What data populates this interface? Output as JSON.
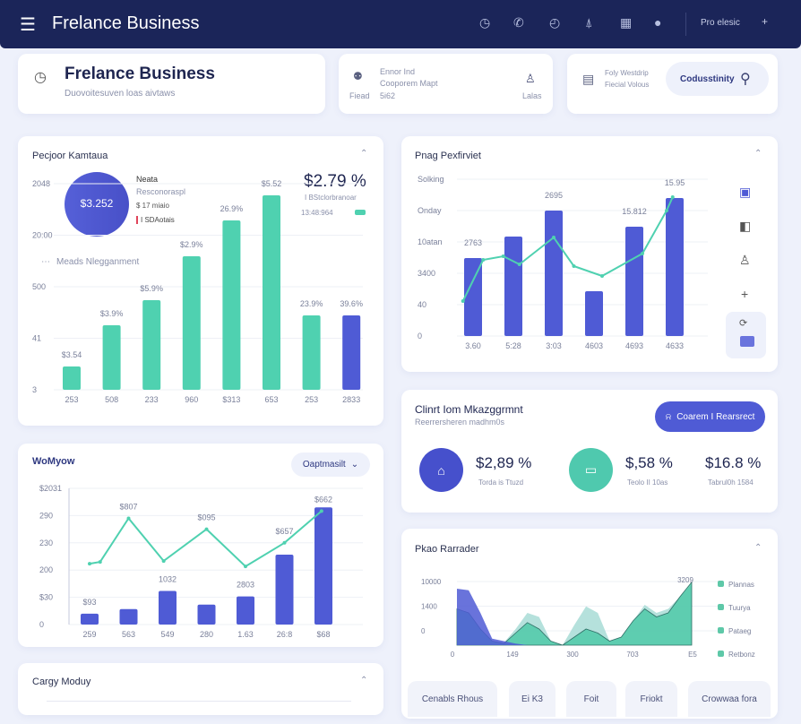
{
  "header": {
    "title": "Frelance Business",
    "user_label": "Pro elesic",
    "icons": [
      "clock-icon",
      "phone-icon",
      "timer-icon",
      "user-upload-icon",
      "calendar-icon",
      "info-icon"
    ]
  },
  "top_cards": {
    "business": {
      "title": "Frelance Business",
      "subtitle": "Duovoitesuven loas aivtaws"
    },
    "contact": {
      "line1": "Ennor Ind",
      "line2": "Cooporem Mapt",
      "label_left": "Fiead",
      "value": "5i62",
      "label_right": "Lalas"
    },
    "search": {
      "line1": "Foly Westdrip",
      "line2": "Fiecial Volous",
      "button": "Codusstinity"
    }
  },
  "colors": {
    "navy": "#1b2559",
    "blue": "#4f5bd5",
    "teal": "#4fd1b0",
    "red": "#e0455a"
  },
  "panel_a": {
    "title": "Pecjoor Kamtaua",
    "donut_value": "$3.252",
    "legend_title": "Neata",
    "legend_items": [
      "Resconoraspl",
      "$ 17 miaio",
      "I SDAotais"
    ],
    "kpi": "$2.79 %",
    "kpi_sub": "I BStclorbranoar",
    "kpi_time": "13:48:964",
    "filter": "Meads Nlegganment"
  },
  "panel_b": {
    "title": "Pnag Pexfirviet"
  },
  "panel_c": {
    "title": "Clinrt Iom Mkazggrmnt",
    "subtitle": "Reerrersheren madhm0s",
    "button": "Coarem I Rearsrect",
    "stats": [
      {
        "value": "$2,89 %",
        "label": "Torda is Ttuzd"
      },
      {
        "value": "$,58 %",
        "label": "Teolo II 10as"
      },
      {
        "value": "$16.8 %",
        "label": "Tabrul0h 1584"
      }
    ]
  },
  "panel_d": {
    "title": "WoMyow",
    "dropdown": "Oaptmasilt"
  },
  "panel_e": {
    "title": "Cargy Moduy"
  },
  "panel_f": {
    "title": "Pkao Rarrader",
    "tabs": [
      "Cenabls Rhous",
      "Ei K3",
      "Foit",
      "Friokt",
      "Crowwaa fora"
    ]
  },
  "chart_data": [
    {
      "type": "bar",
      "title": "Pecjoor Kamtaua",
      "categories": [
        "253",
        "508",
        "233",
        "960",
        "$313",
        "653",
        "253",
        "2833"
      ],
      "values": [
        26,
        72,
        100,
        149,
        189,
        217,
        83,
        83
      ],
      "data_labels": [
        "$3.54",
        "$3.9%",
        "$5.9%",
        "$2.9%",
        "26.9%",
        "$5.52",
        "23.9%",
        "39.6%"
      ],
      "yticks": [
        "3",
        "41",
        "500",
        "20:00",
        "2048"
      ],
      "ylim": [
        0,
        230
      ],
      "highlight_index": 7
    },
    {
      "type": "bar+line",
      "title": "Pnag Pexfirviet",
      "categories": [
        "3.60",
        "5:28",
        "3:03",
        "4603",
        "4693",
        "4633"
      ],
      "values": [
        87,
        111,
        140,
        50,
        122,
        154
      ],
      "data_labels": [
        "2763",
        "",
        "2695",
        "",
        "15.812",
        "15.95"
      ],
      "line": {
        "x": [
          -0.25,
          0.25,
          0.75,
          1.15,
          2,
          2.5,
          3.2,
          4.2,
          4.8,
          4.95
        ],
        "y": [
          39,
          85,
          89,
          80,
          110,
          78,
          67,
          92,
          140,
          155
        ]
      },
      "yticks": [
        "0",
        "40",
        "3400",
        "10atan",
        "Onday",
        "Solking"
      ],
      "ylim": [
        0,
        175
      ]
    },
    {
      "type": "bar+line",
      "title": "WoMyow",
      "categories": [
        "259",
        "563",
        "549",
        "280",
        "1.63",
        "26:8",
        "$68"
      ],
      "values": [
        12,
        17,
        37,
        22,
        31,
        77,
        129
      ],
      "data_labels": [
        "$93",
        "",
        "1032",
        "",
        "2803",
        "",
        ""
      ],
      "line": {
        "x": [
          0,
          0.27,
          1,
          1.9,
          3,
          4,
          5,
          5.95
        ],
        "y": [
          67,
          69,
          117,
          70,
          105,
          64,
          90,
          125
        ]
      },
      "line_labels": [
        {
          "x": 1,
          "text": "$807"
        },
        {
          "x": 3,
          "text": "$095"
        },
        {
          "x": 5,
          "text": "$657"
        },
        {
          "x": 6,
          "text": "$662"
        }
      ],
      "yticks": [
        "0",
        "$30",
        "200",
        "230",
        "290",
        "$2031"
      ],
      "ylim": [
        0,
        150
      ]
    },
    {
      "type": "area",
      "title": "Pkao Rarrader",
      "xticks": [
        "0",
        "149",
        "300",
        "703",
        "E5"
      ],
      "yticks": [
        "0",
        "1400",
        "10000"
      ],
      "series": [
        {
          "name": "Plannas",
          "color": "#4f5bd5",
          "y": [
            70,
            68,
            40,
            8,
            5,
            2,
            0,
            0,
            0,
            0,
            0,
            0,
            0,
            0,
            0,
            0,
            0,
            0,
            0,
            0,
            0
          ]
        },
        {
          "name": "Tuurya",
          "color": "#a8dcd6",
          "y": [
            45,
            40,
            20,
            5,
            3,
            20,
            40,
            35,
            5,
            0,
            25,
            48,
            40,
            5,
            10,
            30,
            50,
            40,
            45,
            60,
            75
          ]
        },
        {
          "name": "Pataeg",
          "color": "#4fc9a8",
          "y": [
            45,
            40,
            20,
            5,
            2,
            15,
            28,
            20,
            5,
            0,
            10,
            20,
            15,
            5,
            10,
            30,
            45,
            35,
            40,
            60,
            78
          ]
        },
        {
          "name": "Retbonz",
          "color": "#5ec2a6"
        }
      ],
      "peak_label": "3209",
      "ylim": [
        0,
        80
      ]
    }
  ]
}
